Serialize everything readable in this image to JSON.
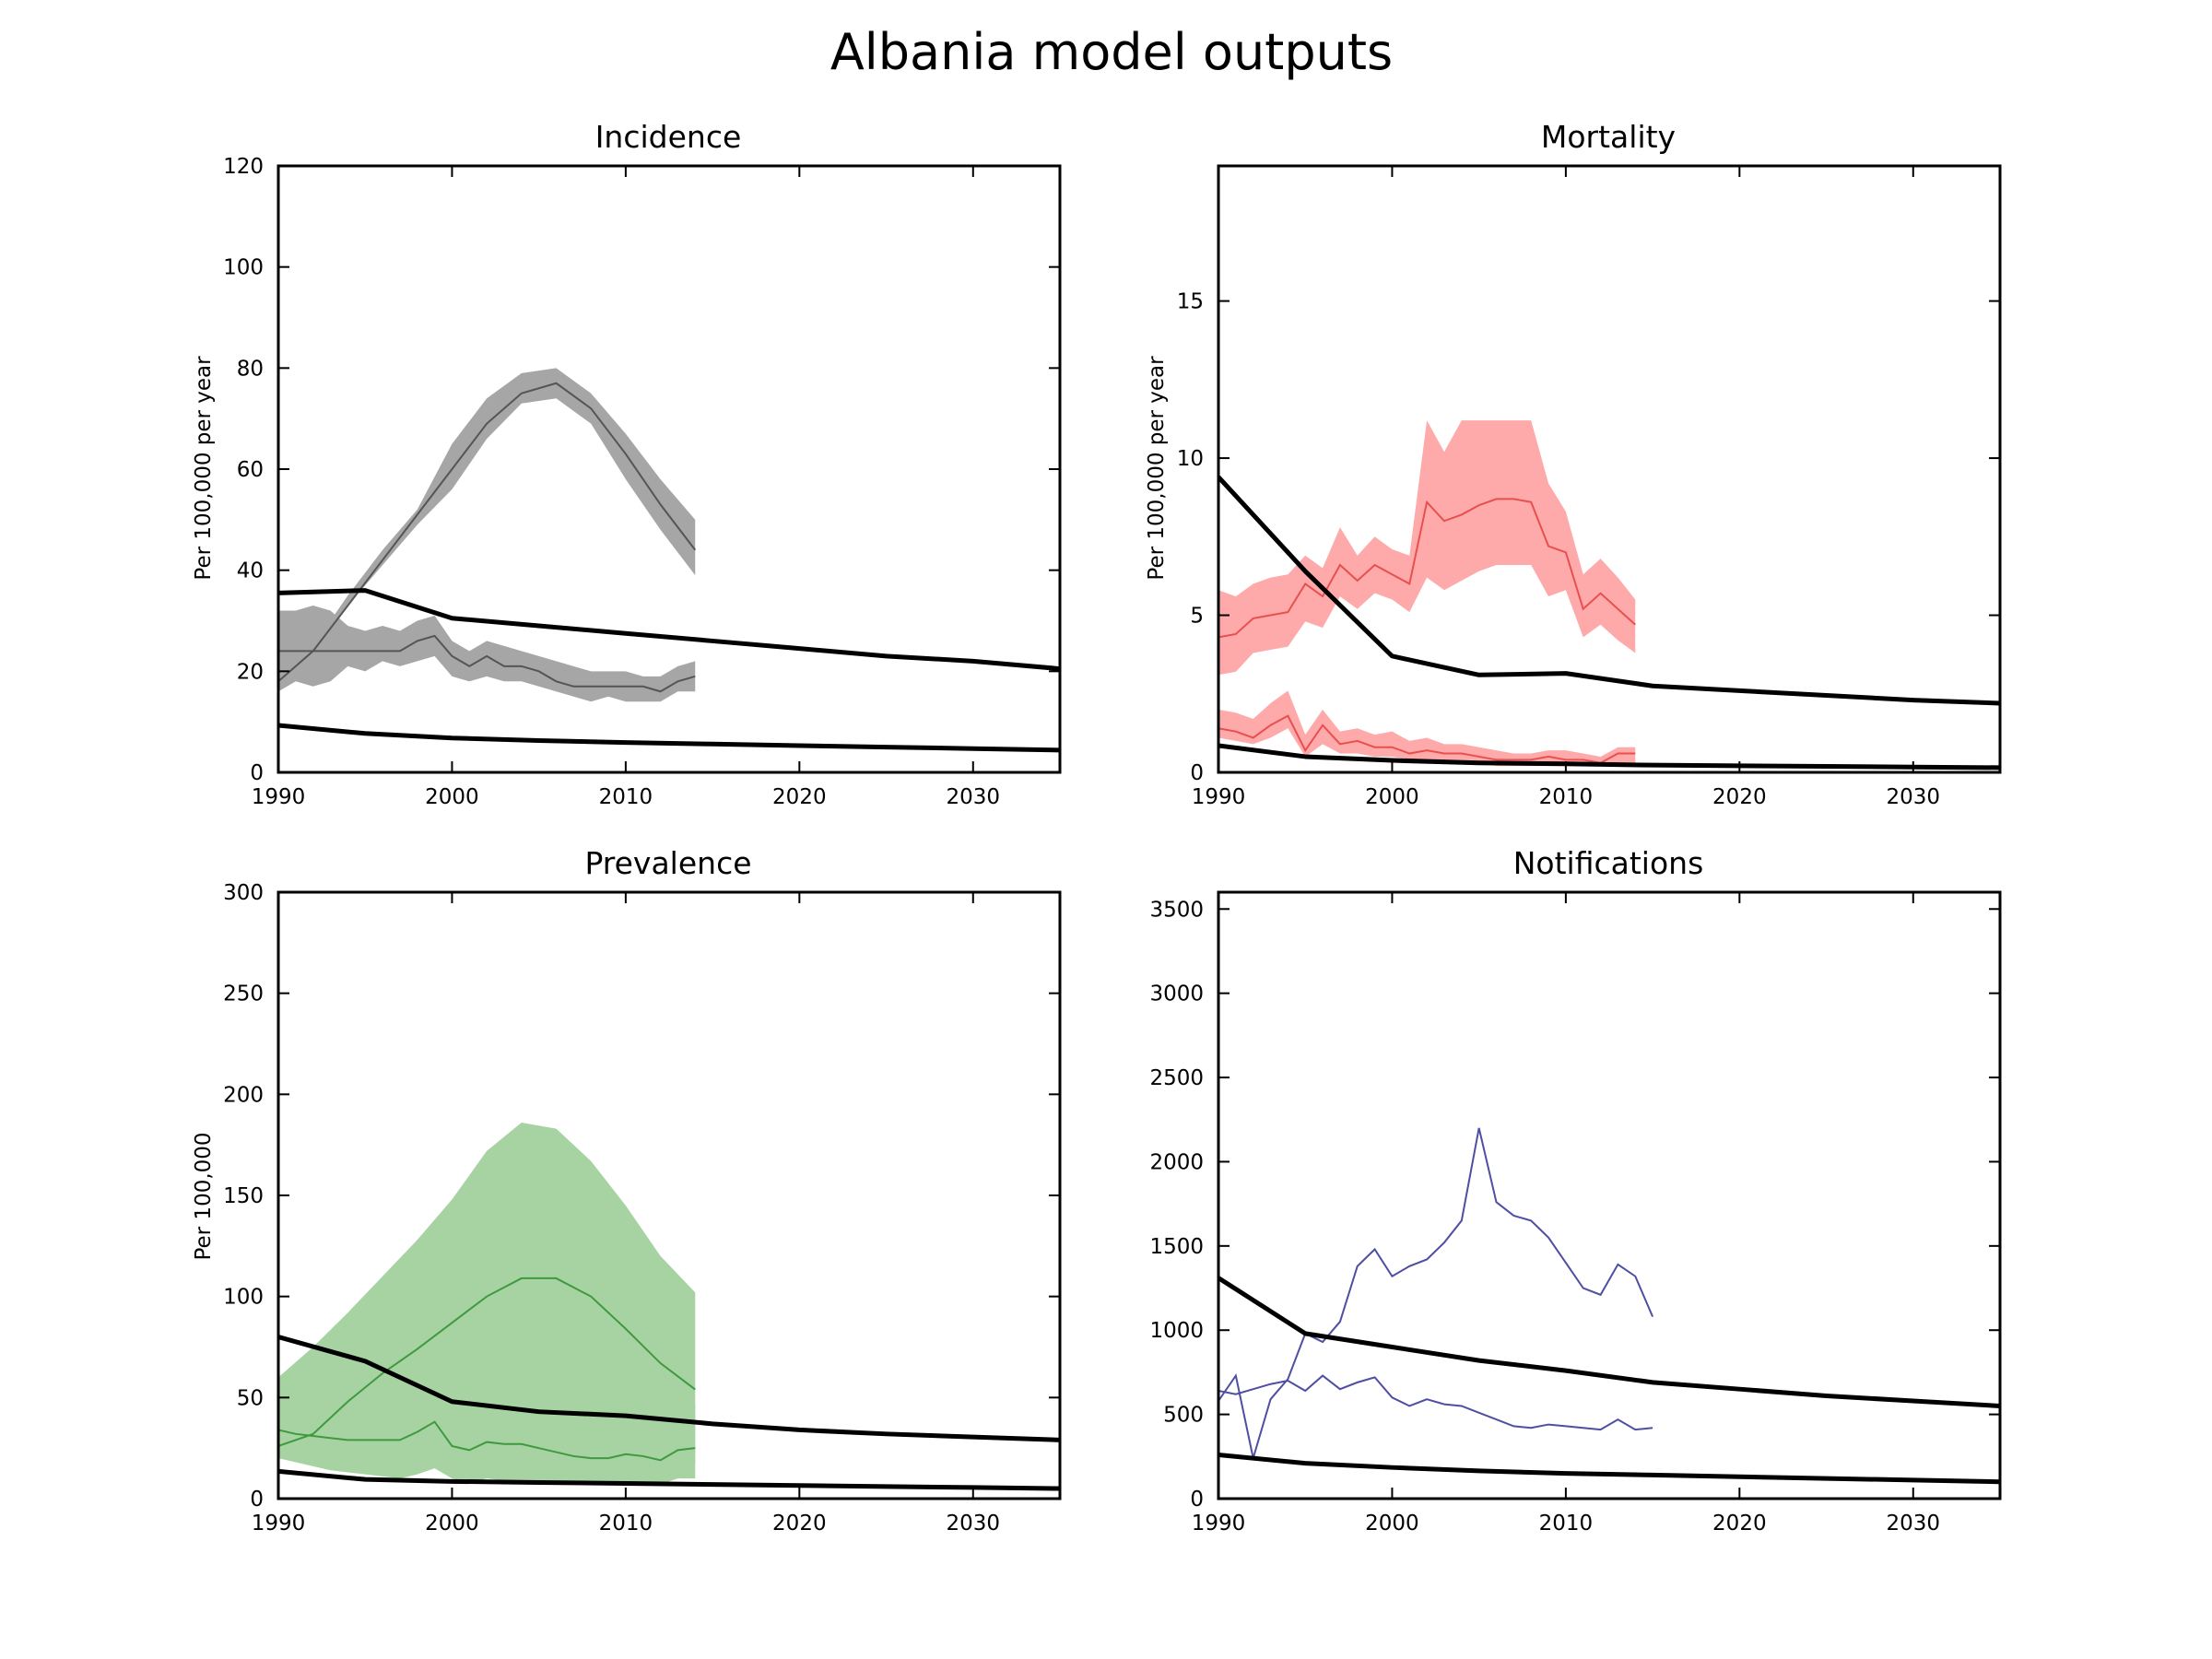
{
  "figure": {
    "title": "Albania model outputs"
  },
  "colors": {
    "incidence": "#555555",
    "incidence_band": "#a6a6a6",
    "mortality": "#e84f4f",
    "mortality_band": "#ffaaaa",
    "prevalence": "#3f9a3f",
    "prevalence_band": "#a7d3a3",
    "notifications": "#4e4ea3",
    "model": "#000000"
  },
  "chart_data": [
    {
      "id": "incidence",
      "type": "line",
      "title": "Incidence",
      "ylabel": "Per 100,000 per year",
      "xlim": [
        1990,
        2035
      ],
      "ylim": [
        0,
        120
      ],
      "xticks": [
        1990,
        2000,
        2010,
        2020,
        2030
      ],
      "yticks": [
        0,
        20,
        40,
        60,
        80,
        100,
        120
      ],
      "bands": [
        {
          "x": [
            1990,
            1992,
            1994,
            1996,
            1998,
            2000,
            2002,
            2004,
            2006,
            2008,
            2010,
            2012,
            2014
          ],
          "lower": [
            16,
            23,
            33,
            41,
            49,
            56,
            66,
            73,
            74,
            69,
            58,
            48,
            39
          ],
          "upper": [
            18,
            25,
            35,
            44,
            52,
            65,
            74,
            79,
            80,
            75,
            67,
            58,
            50
          ]
        },
        {
          "x": [
            1990,
            1991,
            1992,
            1993,
            1994,
            1995,
            1996,
            1997,
            1998,
            1999,
            2000,
            2001,
            2002,
            2003,
            2004,
            2005,
            2006,
            2007,
            2008,
            2009,
            2010,
            2011,
            2012,
            2013,
            2014
          ],
          "lower": [
            16,
            18,
            17,
            18,
            21,
            20,
            22,
            21,
            22,
            23,
            19,
            18,
            19,
            18,
            18,
            17,
            16,
            15,
            14,
            15,
            14,
            14,
            14,
            16,
            16
          ],
          "upper": [
            32,
            32,
            33,
            32,
            29,
            28,
            29,
            28,
            30,
            31,
            26,
            24,
            26,
            25,
            24,
            23,
            22,
            21,
            20,
            20,
            20,
            19,
            19,
            21,
            22
          ]
        }
      ],
      "series": [
        {
          "x": [
            1990,
            1992,
            1994,
            1996,
            1998,
            2000,
            2002,
            2004,
            2006,
            2008,
            2010,
            2012,
            2014
          ],
          "values": [
            18,
            24,
            33,
            42,
            51,
            60,
            69,
            75,
            77,
            72,
            63,
            53,
            44
          ]
        },
        {
          "x": [
            1990,
            1991,
            1992,
            1993,
            1994,
            1995,
            1996,
            1997,
            1998,
            1999,
            2000,
            2001,
            2002,
            2003,
            2004,
            2005,
            2006,
            2007,
            2008,
            2009,
            2010,
            2011,
            2012,
            2013,
            2014
          ],
          "values": [
            24,
            24,
            24,
            24,
            24,
            24,
            24,
            24,
            26,
            27,
            23,
            21,
            23,
            21,
            21,
            20,
            18,
            17,
            17,
            17,
            17,
            17,
            16,
            18,
            19
          ]
        }
      ],
      "model": [
        {
          "x": [
            1990,
            1995,
            2000,
            2005,
            2010,
            2015,
            2020,
            2025,
            2030,
            2035
          ],
          "values": [
            35.5,
            36,
            30.5,
            29,
            27.5,
            26,
            24.5,
            23,
            22,
            20.5
          ]
        },
        {
          "x": [
            1990,
            1995,
            2000,
            2005,
            2010,
            2015,
            2020,
            2025,
            2030,
            2035
          ],
          "values": [
            9.3,
            7.7,
            6.8,
            6.3,
            5.9,
            5.6,
            5.3,
            5,
            4.7,
            4.4
          ]
        }
      ]
    },
    {
      "id": "mortality",
      "type": "line",
      "title": "Mortality",
      "ylabel": "Per 100,000 per year",
      "xlim": [
        1990,
        2035
      ],
      "ylim": [
        0,
        19.3
      ],
      "xticks": [
        1990,
        2000,
        2010,
        2020,
        2030
      ],
      "yticks": [
        0,
        5,
        10,
        15
      ],
      "bands": [
        {
          "x": [
            1990,
            1991,
            1992,
            1993,
            1994,
            1995,
            1996,
            1997,
            1998,
            1999,
            2000,
            2001,
            2002,
            2003,
            2004,
            2005,
            2006,
            2007,
            2008,
            2009,
            2010,
            2011,
            2012,
            2013,
            2014
          ],
          "lower": [
            3.1,
            3.2,
            3.8,
            3.9,
            4.0,
            4.8,
            4.6,
            5.6,
            5.2,
            5.7,
            5.5,
            5.1,
            6.2,
            5.8,
            6.1,
            6.4,
            6.6,
            6.6,
            6.6,
            5.6,
            5.8,
            4.3,
            4.7,
            4.2,
            3.8
          ],
          "upper": [
            5.8,
            5.6,
            6.0,
            6.2,
            6.3,
            6.9,
            6.5,
            7.8,
            6.9,
            7.5,
            7.1,
            6.9,
            11.2,
            10.2,
            11.2,
            11.2,
            11.2,
            11.2,
            11.2,
            9.2,
            8.3,
            6.3,
            6.8,
            6.2,
            5.5
          ]
        },
        {
          "x": [
            1990,
            1991,
            1992,
            1993,
            1994,
            1995,
            1996,
            1997,
            1998,
            1999,
            2000,
            2001,
            2002,
            2003,
            2004,
            2005,
            2006,
            2007,
            2008,
            2009,
            2010,
            2011,
            2012,
            2013,
            2014
          ],
          "lower": [
            1.1,
            1.0,
            0.9,
            1.1,
            1.4,
            0.5,
            0.9,
            0.6,
            0.6,
            0.5,
            0.5,
            0.4,
            0.4,
            0.3,
            0.3,
            0.3,
            0.2,
            0.2,
            0.2,
            0.2,
            0.2,
            0.2,
            0.2,
            0.3,
            0.3
          ],
          "upper": [
            2.0,
            1.9,
            1.7,
            2.2,
            2.6,
            1.2,
            2.0,
            1.3,
            1.4,
            1.2,
            1.3,
            1.0,
            1.1,
            0.9,
            0.9,
            0.8,
            0.7,
            0.6,
            0.6,
            0.7,
            0.7,
            0.6,
            0.5,
            0.8,
            0.8
          ]
        }
      ],
      "series": [
        {
          "x": [
            1990,
            1991,
            1992,
            1993,
            1994,
            1995,
            1996,
            1997,
            1998,
            1999,
            2000,
            2001,
            2002,
            2003,
            2004,
            2005,
            2006,
            2007,
            2008,
            2009,
            2010,
            2011,
            2012,
            2013,
            2014
          ],
          "values": [
            4.3,
            4.4,
            4.9,
            5.0,
            5.1,
            6.0,
            5.6,
            6.6,
            6.1,
            6.6,
            6.3,
            6.0,
            8.6,
            8.0,
            8.2,
            8.5,
            8.7,
            8.7,
            8.6,
            7.2,
            7.0,
            5.2,
            5.7,
            5.2,
            4.7
          ]
        },
        {
          "x": [
            1990,
            1991,
            1992,
            1993,
            1994,
            1995,
            1996,
            1997,
            1998,
            1999,
            2000,
            2001,
            2002,
            2003,
            2004,
            2005,
            2006,
            2007,
            2008,
            2009,
            2010,
            2011,
            2012,
            2013,
            2014
          ],
          "values": [
            1.4,
            1.3,
            1.1,
            1.5,
            1.8,
            0.7,
            1.5,
            0.9,
            1.0,
            0.8,
            0.8,
            0.6,
            0.7,
            0.6,
            0.6,
            0.5,
            0.4,
            0.4,
            0.4,
            0.5,
            0.4,
            0.4,
            0.3,
            0.6,
            0.6
          ]
        }
      ],
      "model": [
        {
          "x": [
            1990,
            1995,
            2000,
            2005,
            2010,
            2015,
            2020,
            2025,
            2030,
            2035
          ],
          "values": [
            9.4,
            6.4,
            3.7,
            3.1,
            3.15,
            2.75,
            2.6,
            2.45,
            2.3,
            2.2
          ]
        },
        {
          "x": [
            1990,
            1995,
            2000,
            2005,
            2010,
            2015,
            2020,
            2025,
            2030,
            2035
          ],
          "values": [
            0.85,
            0.5,
            0.38,
            0.3,
            0.27,
            0.23,
            0.21,
            0.19,
            0.17,
            0.15
          ]
        }
      ]
    },
    {
      "id": "prevalence",
      "type": "line",
      "title": "Prevalence",
      "ylabel": "Per 100,000",
      "xlim": [
        1990,
        2035
      ],
      "ylim": [
        0,
        300
      ],
      "xticks": [
        1990,
        2000,
        2010,
        2020,
        2030
      ],
      "yticks": [
        0,
        50,
        100,
        150,
        200,
        250,
        300
      ],
      "bands": [
        {
          "x": [
            1990,
            1992,
            1994,
            1996,
            1998,
            2000,
            2002,
            2004,
            2006,
            2008,
            2010,
            2012,
            2014
          ],
          "lower": [
            20,
            22,
            24,
            26,
            29,
            30,
            35,
            37,
            37,
            34,
            28,
            22,
            17
          ],
          "upper": [
            60,
            75,
            92,
            110,
            128,
            148,
            172,
            186,
            183,
            167,
            145,
            120,
            102
          ]
        },
        {
          "x": [
            1990,
            1991,
            1992,
            1993,
            1994,
            1995,
            1996,
            1997,
            1998,
            1999,
            2000,
            2001,
            2002,
            2003,
            2004,
            2005,
            2006,
            2007,
            2008,
            2009,
            2010,
            2011,
            2012,
            2013,
            2014
          ],
          "lower": [
            20,
            18,
            16,
            14,
            13,
            12,
            11,
            10,
            12,
            15,
            10,
            8,
            10,
            9,
            9,
            8,
            8,
            7,
            7,
            7,
            8,
            7,
            7,
            10,
            10
          ],
          "upper": [
            60,
            59,
            58,
            65,
            60,
            52,
            50,
            53,
            55,
            57,
            53,
            52,
            55,
            53,
            52,
            51,
            49,
            46,
            44,
            45,
            44,
            44,
            43,
            48,
            47
          ]
        }
      ],
      "series": [
        {
          "x": [
            1990,
            1992,
            1994,
            1996,
            1998,
            2000,
            2002,
            2004,
            2006,
            2008,
            2010,
            2012,
            2014
          ],
          "values": [
            26,
            32,
            48,
            62,
            74,
            87,
            100,
            109,
            109,
            100,
            84,
            67,
            54
          ]
        },
        {
          "x": [
            1990,
            1991,
            1992,
            1993,
            1994,
            1995,
            1996,
            1997,
            1998,
            1999,
            2000,
            2001,
            2002,
            2003,
            2004,
            2005,
            2006,
            2007,
            2008,
            2009,
            2010,
            2011,
            2012,
            2013,
            2014
          ],
          "values": [
            34,
            32,
            31,
            30,
            29,
            29,
            29,
            29,
            33,
            38,
            26,
            24,
            28,
            27,
            27,
            25,
            23,
            21,
            20,
            20,
            22,
            21,
            19,
            24,
            25
          ]
        }
      ],
      "model": [
        {
          "x": [
            1990,
            1995,
            2000,
            2005,
            2010,
            2015,
            2020,
            2025,
            2030,
            2035
          ],
          "values": [
            80,
            68,
            48,
            43,
            41,
            37,
            34,
            32,
            30.5,
            29
          ]
        },
        {
          "x": [
            1990,
            1995,
            2000,
            2005,
            2010,
            2015,
            2020,
            2025,
            2030,
            2035
          ],
          "values": [
            13.5,
            9.5,
            8.5,
            8,
            7.5,
            7,
            6.5,
            6,
            5.5,
            5
          ]
        }
      ]
    },
    {
      "id": "notifications",
      "type": "line",
      "title": "Notifications",
      "ylabel": "",
      "xlim": [
        1990,
        2035
      ],
      "ylim": [
        0,
        3600
      ],
      "xticks": [
        1990,
        2000,
        2010,
        2020,
        2030
      ],
      "yticks": [
        0,
        500,
        1000,
        1500,
        2000,
        2500,
        3000,
        3500
      ],
      "bands": [],
      "series": [
        {
          "x": [
            1990,
            1991,
            1992,
            1993,
            1994,
            1995,
            1996,
            1997,
            1998,
            1999,
            2000,
            2001,
            2002,
            2003,
            2004,
            2005,
            2006,
            2007,
            2008,
            2009,
            2010,
            2011,
            2012,
            2013,
            2014,
            2015
          ],
          "values": [
            580,
            730,
            240,
            590,
            710,
            980,
            930,
            1050,
            1380,
            1480,
            1320,
            1380,
            1420,
            1520,
            1650,
            2200,
            1760,
            1680,
            1650,
            1550,
            1400,
            1250,
            1210,
            1390,
            1320,
            1080
          ]
        },
        {
          "x": [
            1990,
            1991,
            1992,
            1993,
            1994,
            1995,
            1996,
            1997,
            1998,
            1999,
            2000,
            2001,
            2002,
            2003,
            2004,
            2005,
            2006,
            2007,
            2008,
            2009,
            2010,
            2011,
            2012,
            2013,
            2014,
            2015
          ],
          "values": [
            640,
            620,
            650,
            680,
            700,
            640,
            730,
            650,
            690,
            720,
            600,
            550,
            590,
            560,
            550,
            510,
            470,
            430,
            420,
            440,
            430,
            420,
            410,
            470,
            410,
            420
          ]
        }
      ],
      "model": [
        {
          "x": [
            1990,
            1995,
            2000,
            2005,
            2010,
            2015,
            2020,
            2025,
            2030,
            2035
          ],
          "values": [
            1310,
            980,
            900,
            820,
            760,
            690,
            650,
            610,
            580,
            550
          ]
        },
        {
          "x": [
            1990,
            1995,
            2000,
            2005,
            2010,
            2015,
            2020,
            2025,
            2030,
            2035
          ],
          "values": [
            260,
            210,
            185,
            165,
            150,
            140,
            130,
            120,
            110,
            100
          ]
        }
      ]
    }
  ]
}
